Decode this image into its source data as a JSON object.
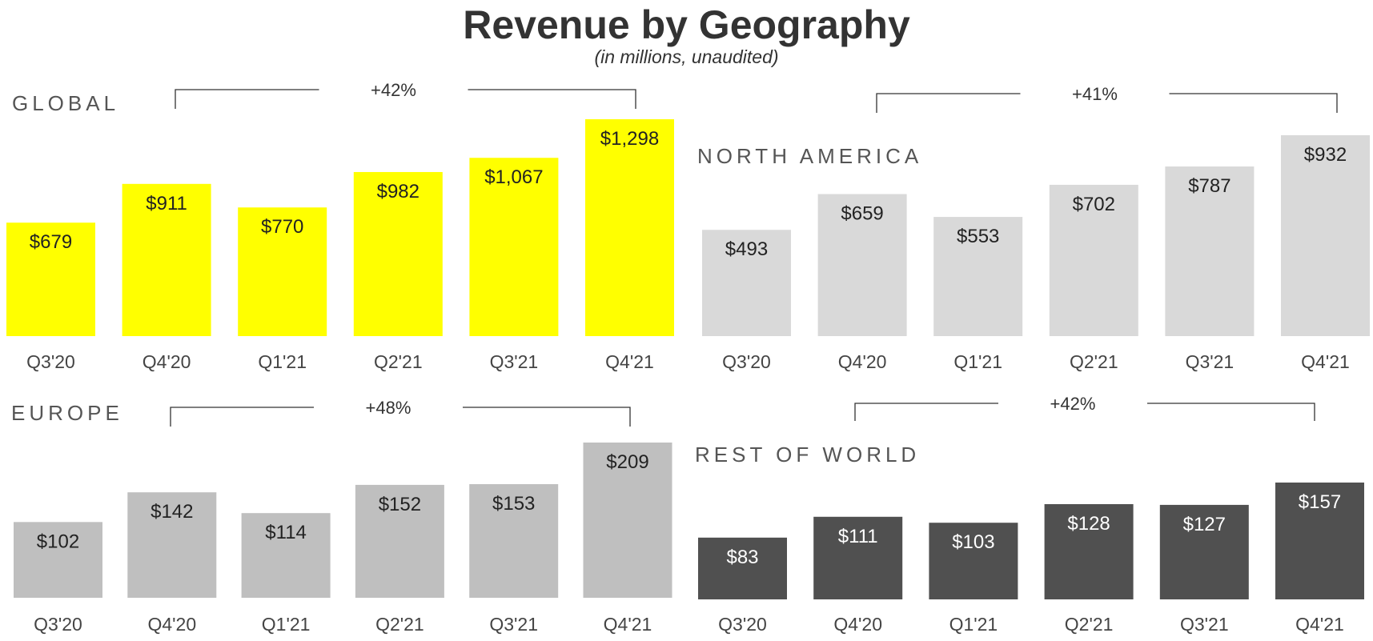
{
  "title": "Revenue by Geography",
  "subtitle": "(in millions, unaudited)",
  "chart_data": [
    {
      "type": "bar",
      "title": "GLOBAL",
      "categories": [
        "Q3'20",
        "Q4'20",
        "Q1'21",
        "Q2'21",
        "Q3'21",
        "Q4'21"
      ],
      "values": [
        679,
        911,
        770,
        982,
        1067,
        1298
      ],
      "value_labels": [
        "$679",
        "$911",
        "$770",
        "$982",
        "$1,067",
        "$1,298"
      ],
      "growth_label": "+42%",
      "growth_from": "Q4'20",
      "growth_to": "Q4'21",
      "bar_color": "#ffff00",
      "label_color": "#222222",
      "ylim": [
        0,
        1298
      ]
    },
    {
      "type": "bar",
      "title": "NORTH AMERICA",
      "categories": [
        "Q3'20",
        "Q4'20",
        "Q1'21",
        "Q2'21",
        "Q3'21",
        "Q4'21"
      ],
      "values": [
        493,
        659,
        553,
        702,
        787,
        932
      ],
      "value_labels": [
        "$493",
        "$659",
        "$553",
        "$702",
        "$787",
        "$932"
      ],
      "growth_label": "+41%",
      "growth_from": "Q4'20",
      "growth_to": "Q4'21",
      "bar_color": "#d9d9d9",
      "label_color": "#222222",
      "ylim": [
        0,
        932
      ]
    },
    {
      "type": "bar",
      "title": "EUROPE",
      "categories": [
        "Q3'20",
        "Q4'20",
        "Q1'21",
        "Q2'21",
        "Q3'21",
        "Q4'21"
      ],
      "values": [
        102,
        142,
        114,
        152,
        153,
        209
      ],
      "value_labels": [
        "$102",
        "$142",
        "$114",
        "$152",
        "$153",
        "$209"
      ],
      "growth_label": "+48%",
      "growth_from": "Q4'20",
      "growth_to": "Q4'21",
      "bar_color": "#bfbfbf",
      "label_color": "#222222",
      "ylim": [
        0,
        209
      ]
    },
    {
      "type": "bar",
      "title": "REST OF WORLD",
      "categories": [
        "Q3'20",
        "Q4'20",
        "Q1'21",
        "Q2'21",
        "Q3'21",
        "Q4'21"
      ],
      "values": [
        83,
        111,
        103,
        128,
        127,
        157
      ],
      "value_labels": [
        "$83",
        "$111",
        "$103",
        "$128",
        "$127",
        "$157"
      ],
      "growth_label": "+42%",
      "growth_from": "Q4'20",
      "growth_to": "Q4'21",
      "bar_color": "#505050",
      "label_color": "#ffffff",
      "ylim": [
        0,
        157
      ]
    }
  ]
}
